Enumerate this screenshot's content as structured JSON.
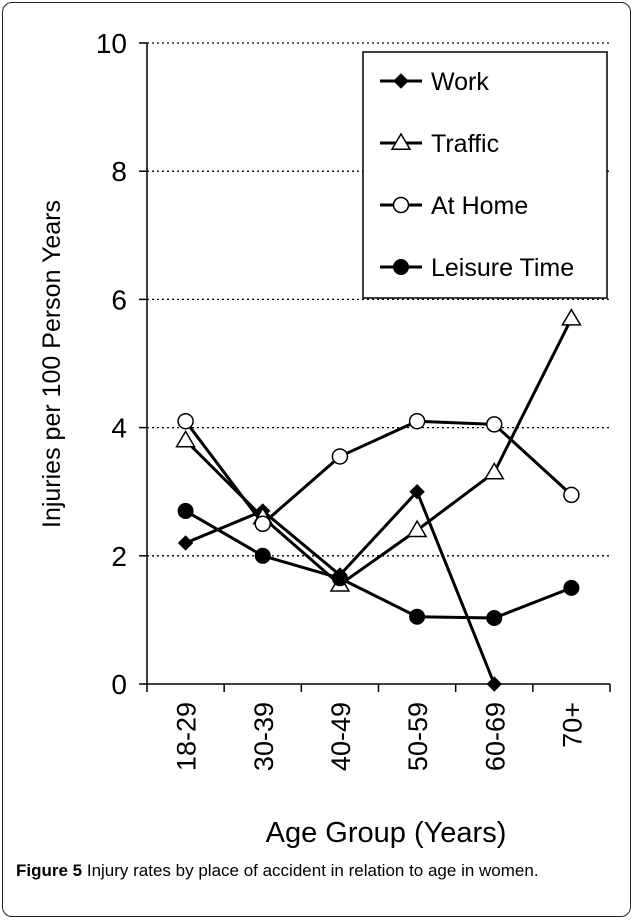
{
  "chart_data": {
    "type": "line",
    "categories": [
      "18-29",
      "30-39",
      "40-49",
      "50-59",
      "60-69",
      "70+"
    ],
    "series": [
      {
        "name": "Work",
        "marker": "diamond",
        "values": [
          2.2,
          2.7,
          1.7,
          3.0,
          0.0,
          null
        ]
      },
      {
        "name": "Traffic",
        "marker": "triangle-open",
        "values": [
          3.8,
          2.6,
          1.55,
          2.4,
          3.3,
          5.7
        ]
      },
      {
        "name": "At Home",
        "marker": "circle-open",
        "values": [
          4.1,
          2.5,
          3.55,
          4.1,
          4.05,
          2.95
        ]
      },
      {
        "name": "Leisure Time",
        "marker": "circle-filled",
        "values": [
          2.7,
          2.0,
          1.65,
          1.05,
          1.03,
          1.5
        ]
      }
    ],
    "xlabel": "Age Group (Years)",
    "ylabel": "Injuries per 100 Person Years",
    "ylim": [
      0,
      10
    ],
    "yticks": [
      "0",
      "2",
      "4",
      "6",
      "8",
      "10"
    ],
    "grid": "horizontal-dotted",
    "legend": "top-right"
  },
  "caption": {
    "label": "Figure 5",
    "text": " Injury rates by place of accident in relation to age in women."
  }
}
